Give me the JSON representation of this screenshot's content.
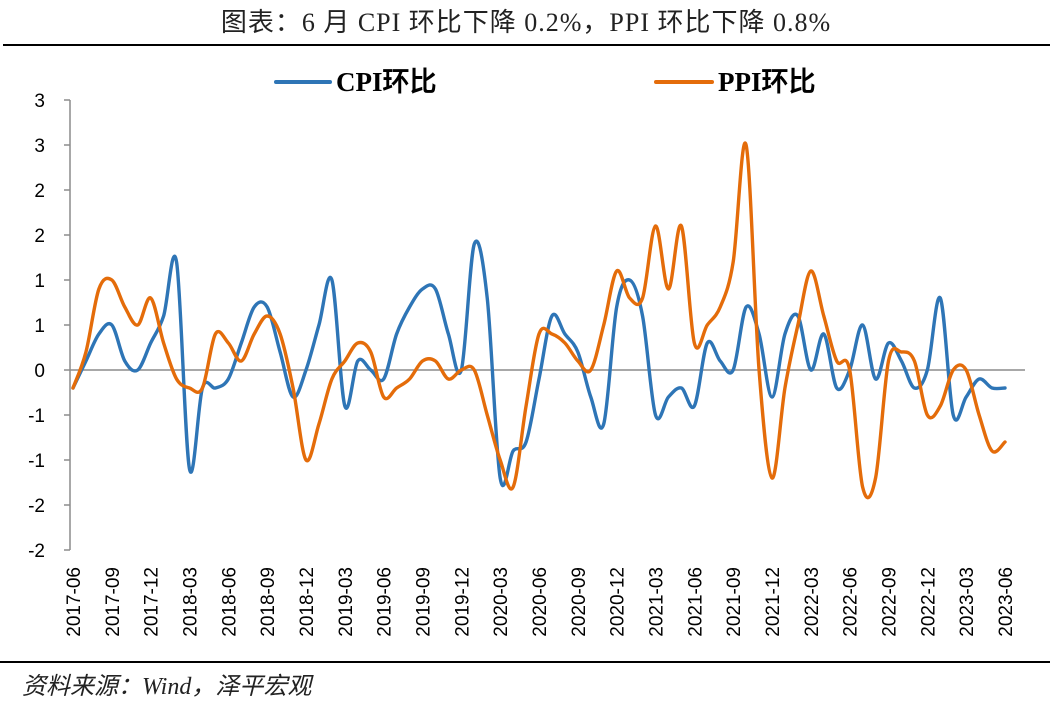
{
  "chart_data": {
    "type": "line",
    "title": "图表：6 月 CPI 环比下降 0.2%，PPI 环比下降 0.8%",
    "xlabel": "",
    "ylabel": "",
    "x_ticklabels": [
      "2017-06",
      "2017-09",
      "2017-12",
      "2018-03",
      "2018-06",
      "2018-09",
      "2018-12",
      "2019-03",
      "2019-06",
      "2019-09",
      "2019-12",
      "2020-03",
      "2020-06",
      "2020-09",
      "2020-12",
      "2021-03",
      "2021-06",
      "2021-09",
      "2021-12",
      "2022-03",
      "2022-06",
      "2022-09",
      "2022-12",
      "2023-03",
      "2023-06"
    ],
    "x_tick_step_months": 3,
    "yticks": [
      3,
      2.5,
      2,
      1.5,
      1,
      0.5,
      0,
      -0.5,
      -1,
      -1.5,
      -2
    ],
    "yticklabels": [
      "3",
      "3",
      "2",
      "2",
      "1",
      "1",
      "0",
      "-1",
      "-1",
      "-2",
      "-2"
    ],
    "ylim": [
      -2,
      3
    ],
    "grid": false,
    "series": [
      {
        "name": "CPI环比",
        "color": "#2E75B6",
        "values": [
          -0.2,
          0.1,
          0.4,
          0.5,
          0.1,
          0.0,
          0.3,
          0.6,
          1.2,
          -1.1,
          -0.2,
          -0.2,
          -0.1,
          0.3,
          0.7,
          0.7,
          0.2,
          -0.3,
          0.0,
          0.5,
          1.0,
          -0.4,
          0.1,
          0.0,
          -0.1,
          0.4,
          0.7,
          0.9,
          0.9,
          0.4,
          0.0,
          1.4,
          0.8,
          -1.2,
          -0.9,
          -0.8,
          -0.1,
          0.6,
          0.4,
          0.2,
          -0.3,
          -0.6,
          0.7,
          1.0,
          0.6,
          -0.5,
          -0.3,
          -0.2,
          -0.4,
          0.3,
          0.1,
          0.0,
          0.7,
          0.4,
          -0.3,
          0.4,
          0.6,
          0.0,
          0.4,
          -0.2,
          0.0,
          0.5,
          -0.1,
          0.3,
          0.1,
          -0.2,
          0.0,
          0.8,
          -0.5,
          -0.3,
          -0.1,
          -0.2,
          -0.2
        ]
      },
      {
        "name": "PPI环比",
        "color": "#E46C0A",
        "values": [
          -0.2,
          0.2,
          0.9,
          1.0,
          0.7,
          0.5,
          0.8,
          0.3,
          -0.1,
          -0.2,
          -0.2,
          0.4,
          0.3,
          0.1,
          0.4,
          0.6,
          0.4,
          -0.2,
          -1.0,
          -0.6,
          -0.1,
          0.1,
          0.3,
          0.2,
          -0.3,
          -0.2,
          -0.1,
          0.1,
          0.1,
          -0.1,
          0.0,
          0.0,
          -0.5,
          -1.0,
          -1.3,
          -0.4,
          0.4,
          0.4,
          0.3,
          0.1,
          0.0,
          0.5,
          1.1,
          0.8,
          0.8,
          1.6,
          0.9,
          1.6,
          0.3,
          0.5,
          0.7,
          1.2,
          2.5,
          0.0,
          -1.2,
          -0.2,
          0.5,
          1.1,
          0.6,
          0.1,
          0.0,
          -1.3,
          -1.2,
          0.1,
          0.2,
          0.1,
          -0.5,
          -0.4,
          0.0,
          0.0,
          -0.5,
          -0.9,
          -0.8
        ]
      }
    ]
  },
  "source": "资料来源：Wind，泽平宏观"
}
